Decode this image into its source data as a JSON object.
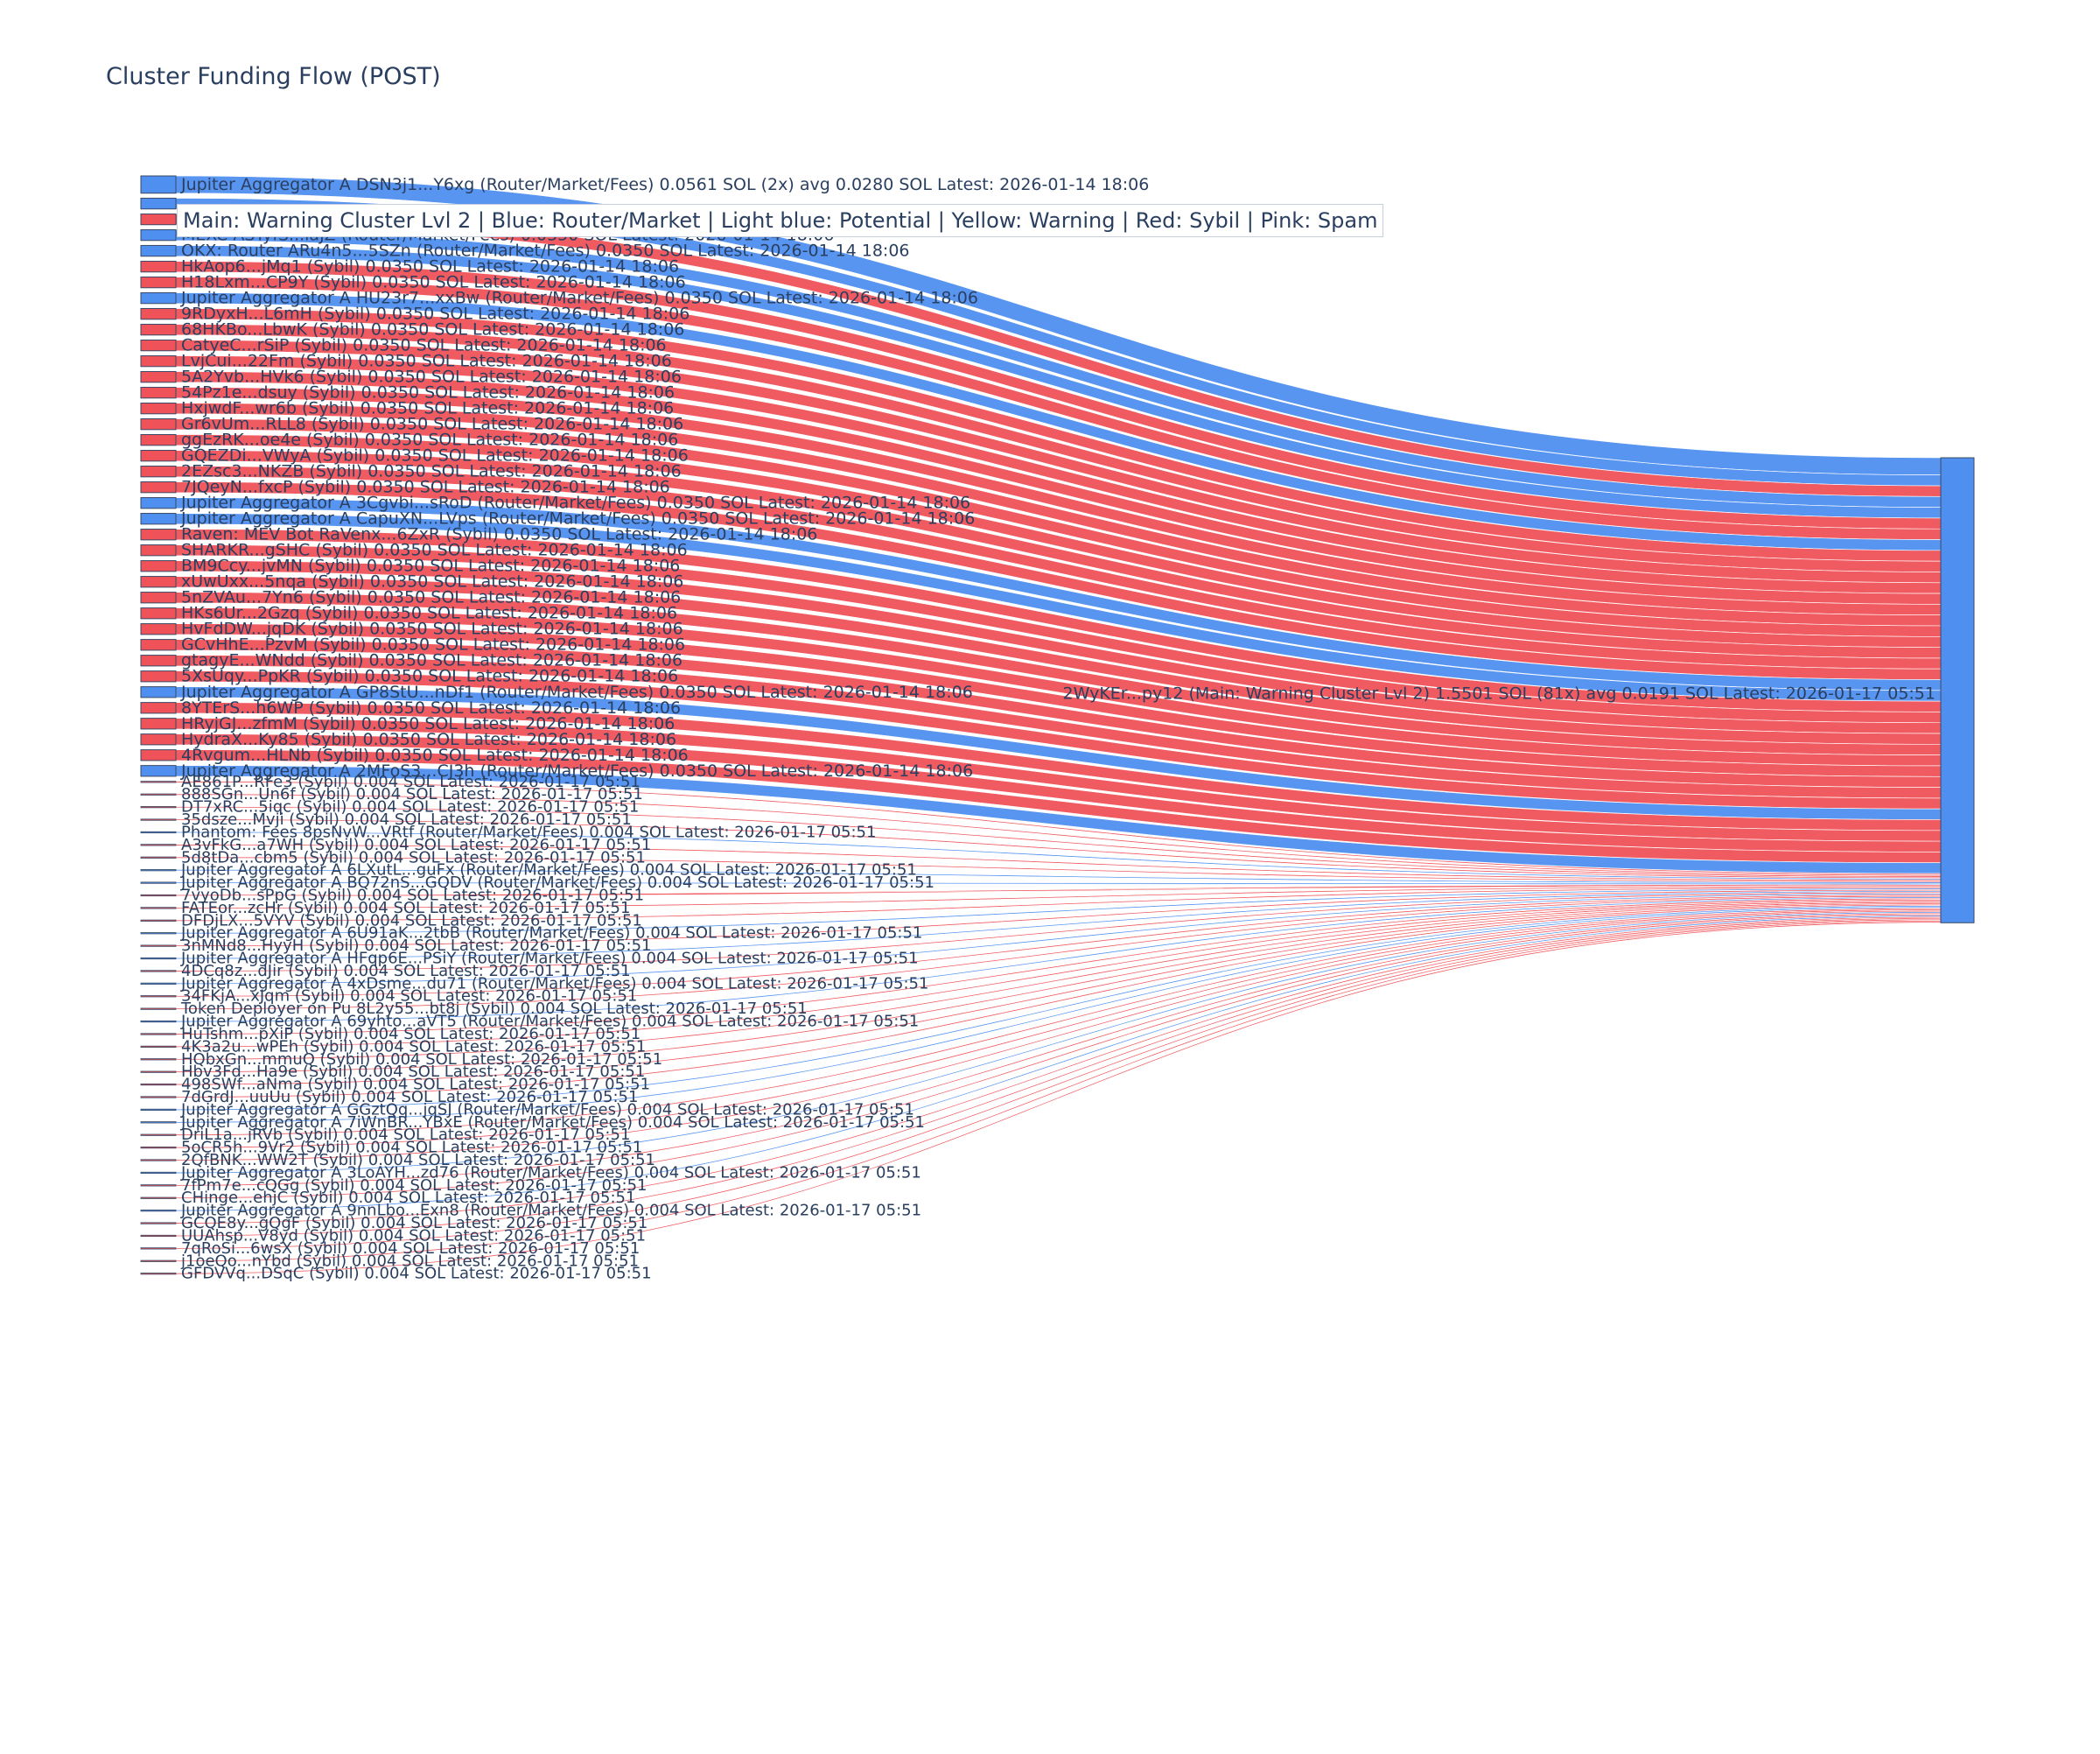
{
  "title": "Cluster Funding Flow (POST)",
  "legend_text": "Main: Warning Cluster Lvl 2  |  Blue: Router/Market | Light blue: Potential | Yellow: Warning | Red: Sybil | Pink: Spam",
  "colors": {
    "blue": "#4f8ff0",
    "red": "#ef5258",
    "text": "#2a3f5f",
    "node_border": "#3a4a66"
  },
  "chart_data": {
    "type": "sankey",
    "target": {
      "label": "2WyKEr...py12 (Main: Warning Cluster Lvl 2) 1.5501 SOL (81x) avg 0.0191 SOL Latest: 2026-01-17 05:51",
      "color": "blue"
    },
    "sources": [
      {
        "label": "Jupiter Aggregator A DSN3j1...Y6xg (Router/Market/Fees) 0.0561 SOL (2x) avg 0.0280 SOL Latest: 2026-01-14 18:06",
        "value": 0.0561,
        "color": "blue"
      },
      {
        "label": "",
        "value": 0.035,
        "color": "blue"
      },
      {
        "label": "rAcL6z...rrSYA (Sybil) 0.0350 SOL Latest: 2026-01-14 18:06",
        "value": 0.035,
        "color": "red"
      },
      {
        "label": "MEXC ASTyfS...iaJZ (Router/Market/Fees) 0.0350 SOL Latest: 2026-01-14 18:06",
        "value": 0.035,
        "color": "blue"
      },
      {
        "label": "OKX: Router ARu4n5...5SZn (Router/Market/Fees) 0.0350 SOL Latest: 2026-01-14 18:06",
        "value": 0.035,
        "color": "blue"
      },
      {
        "label": "HkAop6...jMq1 (Sybil) 0.0350 SOL Latest: 2026-01-14 18:06",
        "value": 0.035,
        "color": "red"
      },
      {
        "label": "H18Lxm...CP9Y (Sybil) 0.0350 SOL Latest: 2026-01-14 18:06",
        "value": 0.035,
        "color": "red"
      },
      {
        "label": "Jupiter Aggregator A HU23r7...xxBw (Router/Market/Fees) 0.0350 SOL Latest: 2026-01-14 18:06",
        "value": 0.035,
        "color": "blue"
      },
      {
        "label": "9RDyxH...L6mH (Sybil) 0.0350 SOL Latest: 2026-01-14 18:06",
        "value": 0.035,
        "color": "red"
      },
      {
        "label": "68HKBo...LbwK (Sybil) 0.0350 SOL Latest: 2026-01-14 18:06",
        "value": 0.035,
        "color": "red"
      },
      {
        "label": "CatyeC...rSiP (Sybil) 0.0350 SOL Latest: 2026-01-14 18:06",
        "value": 0.035,
        "color": "red"
      },
      {
        "label": "LvjCui...22Fm (Sybil) 0.0350 SOL Latest: 2026-01-14 18:06",
        "value": 0.035,
        "color": "red"
      },
      {
        "label": "5A2Yvb...HVk6 (Sybil) 0.0350 SOL Latest: 2026-01-14 18:06",
        "value": 0.035,
        "color": "red"
      },
      {
        "label": "54Pz1e...dsuy (Sybil) 0.0350 SOL Latest: 2026-01-14 18:06",
        "value": 0.035,
        "color": "red"
      },
      {
        "label": "HxjwdF...wr6b (Sybil) 0.0350 SOL Latest: 2026-01-14 18:06",
        "value": 0.035,
        "color": "red"
      },
      {
        "label": "Gr6vUm...RLL8 (Sybil) 0.0350 SOL Latest: 2026-01-14 18:06",
        "value": 0.035,
        "color": "red"
      },
      {
        "label": "ggEzRK...oe4e (Sybil) 0.0350 SOL Latest: 2026-01-14 18:06",
        "value": 0.035,
        "color": "red"
      },
      {
        "label": "GQEZDi...VWyA (Sybil) 0.0350 SOL Latest: 2026-01-14 18:06",
        "value": 0.035,
        "color": "red"
      },
      {
        "label": "2EZsc3...NKZB (Sybil) 0.0350 SOL Latest: 2026-01-14 18:06",
        "value": 0.035,
        "color": "red"
      },
      {
        "label": "7JQeyN...fxcP (Sybil) 0.0350 SOL Latest: 2026-01-14 18:06",
        "value": 0.035,
        "color": "red"
      },
      {
        "label": "Jupiter Aggregator A 3Cgvbi...sRoD (Router/Market/Fees) 0.0350 SOL Latest: 2026-01-14 18:06",
        "value": 0.035,
        "color": "blue"
      },
      {
        "label": "Jupiter Aggregator A CapuXN...LVps (Router/Market/Fees) 0.0350 SOL Latest: 2026-01-14 18:06",
        "value": 0.035,
        "color": "blue"
      },
      {
        "label": "Raven: MEV Bot RaVenx...6ZxR (Sybil) 0.0350 SOL Latest: 2026-01-14 18:06",
        "value": 0.035,
        "color": "red"
      },
      {
        "label": "SHARKR...gSHC (Sybil) 0.0350 SOL Latest: 2026-01-14 18:06",
        "value": 0.035,
        "color": "red"
      },
      {
        "label": "BM9Ccy...jvMN (Sybil) 0.0350 SOL Latest: 2026-01-14 18:06",
        "value": 0.035,
        "color": "red"
      },
      {
        "label": "xUwUxx...5nqa (Sybil) 0.0350 SOL Latest: 2026-01-14 18:06",
        "value": 0.035,
        "color": "red"
      },
      {
        "label": "5nZVAu...7Yn6 (Sybil) 0.0350 SOL Latest: 2026-01-14 18:06",
        "value": 0.035,
        "color": "red"
      },
      {
        "label": "HKs6Ur...2Gzq (Sybil) 0.0350 SOL Latest: 2026-01-14 18:06",
        "value": 0.035,
        "color": "red"
      },
      {
        "label": "HvFdDW...jqDK (Sybil) 0.0350 SOL Latest: 2026-01-14 18:06",
        "value": 0.035,
        "color": "red"
      },
      {
        "label": "GCvHhE...PzvM (Sybil) 0.0350 SOL Latest: 2026-01-14 18:06",
        "value": 0.035,
        "color": "red"
      },
      {
        "label": "gtagyE...WNdd (Sybil) 0.0350 SOL Latest: 2026-01-14 18:06",
        "value": 0.035,
        "color": "red"
      },
      {
        "label": "5XsUqy...PpKR (Sybil) 0.0350 SOL Latest: 2026-01-14 18:06",
        "value": 0.035,
        "color": "red"
      },
      {
        "label": "Jupiter Aggregator A GP8StU...nDf1 (Router/Market/Fees) 0.0350 SOL Latest: 2026-01-14 18:06",
        "value": 0.035,
        "color": "blue"
      },
      {
        "label": "8YTErS...h6WP (Sybil) 0.0350 SOL Latest: 2026-01-14 18:06",
        "value": 0.035,
        "color": "red"
      },
      {
        "label": "HRyjGJ...zfmM (Sybil) 0.0350 SOL Latest: 2026-01-14 18:06",
        "value": 0.035,
        "color": "red"
      },
      {
        "label": "HydraX...Ky85 (Sybil) 0.0350 SOL Latest: 2026-01-14 18:06",
        "value": 0.035,
        "color": "red"
      },
      {
        "label": "4Rvgum...HLNb (Sybil) 0.0350 SOL Latest: 2026-01-14 18:06",
        "value": 0.035,
        "color": "red"
      },
      {
        "label": "Jupiter Aggregator A 2MFoS3...CJ3h (Router/Market/Fees) 0.0350 SOL Latest: 2026-01-14 18:06",
        "value": 0.035,
        "color": "blue"
      },
      {
        "label": "AE861P...RFe3 (Sybil) 0.004 SOL Latest: 2026-01-17 05:51",
        "value": 0.004,
        "color": "red"
      },
      {
        "label": "888SGn...Un6f (Sybil) 0.004 SOL Latest: 2026-01-17 05:51",
        "value": 0.004,
        "color": "red"
      },
      {
        "label": "DT7xRC...5iqc (Sybil) 0.004 SOL Latest: 2026-01-17 05:51",
        "value": 0.004,
        "color": "red"
      },
      {
        "label": "35dsze...Mvji (Sybil) 0.004 SOL Latest: 2026-01-17 05:51",
        "value": 0.004,
        "color": "red"
      },
      {
        "label": "Phantom: Fees 8psNvW...VRtf (Router/Market/Fees) 0.004 SOL Latest: 2026-01-17 05:51",
        "value": 0.004,
        "color": "blue"
      },
      {
        "label": "A3vFkG...a7WH (Sybil) 0.004 SOL Latest: 2026-01-17 05:51",
        "value": 0.004,
        "color": "red"
      },
      {
        "label": "5d8tDa...cbm5 (Sybil) 0.004 SOL Latest: 2026-01-17 05:51",
        "value": 0.004,
        "color": "red"
      },
      {
        "label": "Jupiter Aggregator A 6LXutL...guFx (Router/Market/Fees) 0.004 SOL Latest: 2026-01-17 05:51",
        "value": 0.004,
        "color": "blue"
      },
      {
        "label": "Jupiter Aggregator A BQ72nS...GQDV (Router/Market/Fees) 0.004 SOL Latest: 2026-01-17 05:51",
        "value": 0.004,
        "color": "blue"
      },
      {
        "label": "7vyoDb...sPpG (Sybil) 0.004 SOL Latest: 2026-01-17 05:51",
        "value": 0.004,
        "color": "red"
      },
      {
        "label": "FATEor...zcHr (Sybil) 0.004 SOL Latest: 2026-01-17 05:51",
        "value": 0.004,
        "color": "red"
      },
      {
        "label": "DFDjLX...5VYV (Sybil) 0.004 SOL Latest: 2026-01-17 05:51",
        "value": 0.004,
        "color": "red"
      },
      {
        "label": "Jupiter Aggregator A 6U91aK...2tbB (Router/Market/Fees) 0.004 SOL Latest: 2026-01-17 05:51",
        "value": 0.004,
        "color": "blue"
      },
      {
        "label": "3nMNd8...HyyH (Sybil) 0.004 SOL Latest: 2026-01-17 05:51",
        "value": 0.004,
        "color": "red"
      },
      {
        "label": "Jupiter Aggregator A HFqp6E...PSiY (Router/Market/Fees) 0.004 SOL Latest: 2026-01-17 05:51",
        "value": 0.004,
        "color": "blue"
      },
      {
        "label": "4DCq8z...dJir (Sybil) 0.004 SOL Latest: 2026-01-17 05:51",
        "value": 0.004,
        "color": "red"
      },
      {
        "label": "Jupiter Aggregator A 4xDsme...du71 (Router/Market/Fees) 0.004 SOL Latest: 2026-01-17 05:51",
        "value": 0.004,
        "color": "blue"
      },
      {
        "label": "34FKjA...xJqm (Sybil) 0.004 SOL Latest: 2026-01-17 05:51",
        "value": 0.004,
        "color": "red"
      },
      {
        "label": "Token Deployer on Pu 8L2y55...bt8j (Sybil) 0.004 SOL Latest: 2026-01-17 05:51",
        "value": 0.004,
        "color": "red"
      },
      {
        "label": "Jupiter Aggregator A 69yhto...aVT5 (Router/Market/Fees) 0.004 SOL Latest: 2026-01-17 05:51",
        "value": 0.004,
        "color": "blue"
      },
      {
        "label": "HuTshm...pXiP (Sybil) 0.004 SOL Latest: 2026-01-17 05:51",
        "value": 0.004,
        "color": "red"
      },
      {
        "label": "4K3a2u...wPEh (Sybil) 0.004 SOL Latest: 2026-01-17 05:51",
        "value": 0.004,
        "color": "red"
      },
      {
        "label": "HQbxGn...mmuQ (Sybil) 0.004 SOL Latest: 2026-01-17 05:51",
        "value": 0.004,
        "color": "red"
      },
      {
        "label": "Hbv3Fd...Ha9e (Sybil) 0.004 SOL Latest: 2026-01-17 05:51",
        "value": 0.004,
        "color": "red"
      },
      {
        "label": "498SWf...aNma (Sybil) 0.004 SOL Latest: 2026-01-17 05:51",
        "value": 0.004,
        "color": "red"
      },
      {
        "label": "7dGrdJ...uuUu (Sybil) 0.004 SOL Latest: 2026-01-17 05:51",
        "value": 0.004,
        "color": "red"
      },
      {
        "label": "Jupiter Aggregator A GGztQq...jqSJ (Router/Market/Fees) 0.004 SOL Latest: 2026-01-17 05:51",
        "value": 0.004,
        "color": "blue"
      },
      {
        "label": "Jupiter Aggregator A 7iWnBR...YBxE (Router/Market/Fees) 0.004 SOL Latest: 2026-01-17 05:51",
        "value": 0.004,
        "color": "blue"
      },
      {
        "label": "DriL1a...jRVb (Sybil) 0.004 SOL Latest: 2026-01-17 05:51",
        "value": 0.004,
        "color": "red"
      },
      {
        "label": "5oCR5h...9Vr2 (Sybil) 0.004 SOL Latest: 2026-01-17 05:51",
        "value": 0.004,
        "color": "red"
      },
      {
        "label": "2QfBNK...WW2T (Sybil) 0.004 SOL Latest: 2026-01-17 05:51",
        "value": 0.004,
        "color": "red"
      },
      {
        "label": "Jupiter Aggregator A 3LoAYH...zd76 (Router/Market/Fees) 0.004 SOL Latest: 2026-01-17 05:51",
        "value": 0.004,
        "color": "blue"
      },
      {
        "label": "7fPm7e...cQGg (Sybil) 0.004 SOL Latest: 2026-01-17 05:51",
        "value": 0.004,
        "color": "red"
      },
      {
        "label": "CHinge...ehjC (Sybil) 0.004 SOL Latest: 2026-01-17 05:51",
        "value": 0.004,
        "color": "red"
      },
      {
        "label": "Jupiter Aggregator A 9nnLbo...Exn8 (Router/Market/Fees) 0.004 SOL Latest: 2026-01-17 05:51",
        "value": 0.004,
        "color": "blue"
      },
      {
        "label": "GCQE8y...gQgF (Sybil) 0.004 SOL Latest: 2026-01-17 05:51",
        "value": 0.004,
        "color": "red"
      },
      {
        "label": "UUAhsp...V8yd (Sybil) 0.004 SOL Latest: 2026-01-17 05:51",
        "value": 0.004,
        "color": "red"
      },
      {
        "label": "7qRoSi...6wsX (Sybil) 0.004 SOL Latest: 2026-01-17 05:51",
        "value": 0.004,
        "color": "red"
      },
      {
        "label": "j1oeQo...nYbd (Sybil) 0.004 SOL Latest: 2026-01-17 05:51",
        "value": 0.004,
        "color": "red"
      },
      {
        "label": "GFDVVq...DSqC (Sybil) 0.004 SOL Latest: 2026-01-17 05:51",
        "value": 0.004,
        "color": "red"
      }
    ]
  }
}
